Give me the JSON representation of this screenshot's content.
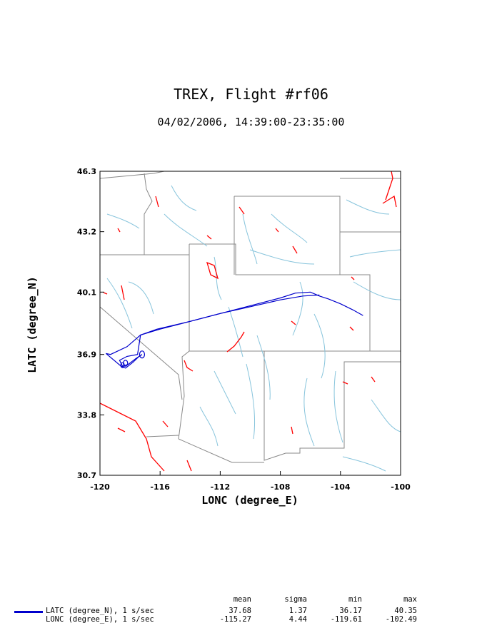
{
  "title": "TREX, Flight #rf06",
  "subtitle": "04/02/2006, 14:39:00-23:35:00",
  "chart_data": {
    "type": "line",
    "xlabel": "LONC (degree_E)",
    "ylabel": "LATC (degree_N)",
    "xlim": [
      -120,
      -100
    ],
    "ylim": [
      30.7,
      46.3
    ],
    "xticks": [
      "-120",
      "-116",
      "-112",
      "-108",
      "-104",
      "-100"
    ],
    "yticks": [
      "30.7",
      "33.8",
      "36.9",
      "40.1",
      "43.2",
      "46.3"
    ],
    "grid": false,
    "colors": {
      "track": "#0000cc",
      "state_borders": "#888888",
      "rivers": "#87c4dc",
      "terrain": "#ff0000"
    },
    "series": [
      {
        "name": "LATC (degree_N), 1 s/sec",
        "x": [
          -117.2,
          -117.6,
          -118.1,
          -118.5,
          -118.7,
          -118.2,
          -117.5,
          -117.3,
          -116.2,
          -114,
          -112,
          -110,
          -108,
          -107,
          -106,
          -105.4,
          -104.8,
          -104,
          -103.2,
          -102.5
        ],
        "y": [
          36.9,
          36.7,
          36.4,
          36.3,
          36.6,
          36.8,
          36.9,
          37.9,
          38.2,
          38.6,
          39,
          39.4,
          39.8,
          40.05,
          40.1,
          39.9,
          39.75,
          39.5,
          39.2,
          38.9
        ]
      },
      {
        "name": "LONC (degree_E), 1 s/sec",
        "x": [
          -105.4,
          -106.5,
          -108,
          -110,
          -112,
          -114,
          -116,
          -117.3,
          -118.2,
          -119.3,
          -119.6,
          -118.6,
          -118.3,
          -117.8,
          -117.4,
          -117.2
        ],
        "y": [
          39.95,
          39.9,
          39.7,
          39.35,
          39.0,
          38.6,
          38.2,
          37.9,
          37.3,
          36.9,
          36.95,
          36.3,
          36.2,
          36.5,
          36.8,
          36.9
        ]
      }
    ],
    "stats": {
      "headers": [
        "mean",
        "sigma",
        "min",
        "max"
      ],
      "rows": [
        {
          "name": "LATC (degree_N), 1 s/sec",
          "values": [
            "37.68",
            "1.37",
            "36.17",
            "40.35"
          ]
        },
        {
          "name": "LONC (degree_E), 1 s/sec",
          "values": [
            "-115.27",
            "4.44",
            "-119.61",
            "-102.49"
          ]
        }
      ]
    }
  }
}
